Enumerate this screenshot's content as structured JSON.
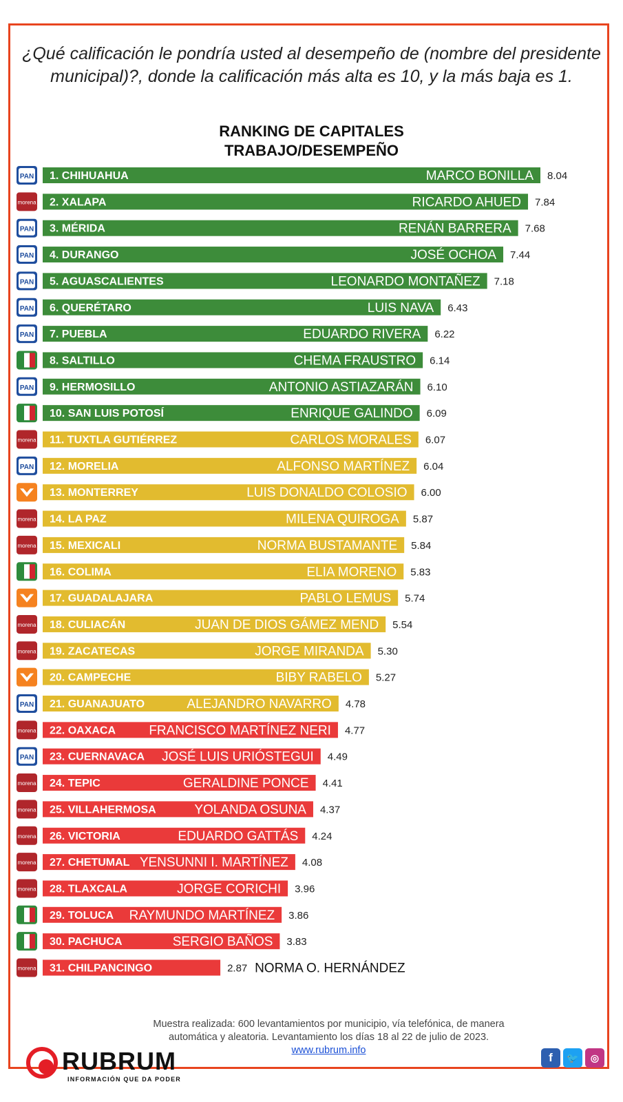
{
  "question": "¿Qué calificación le pondría usted al desempeño de (nombre del presidente municipal)?, donde la calificación más alta es 10, y la más baja es 1.",
  "heading_line1": "RANKING DE CAPITALES",
  "heading_line2": "TRABAJO/DESEMPEÑO",
  "footnote_line1": "Muestra realizada: 600 levantamientos por municipio, vía telefónica, de manera",
  "footnote_line2": "automática y aleatoria. Levantamiento los días 18 al 22 de julio de 2023.",
  "footnote_url": "www.rubrum.info",
  "logo_word": "RUBRUM",
  "logo_tagline": "INFORMACIÓN QUE DA PODER",
  "social_icons": [
    "facebook-icon",
    "twitter-icon",
    "instagram-icon"
  ],
  "party_labels": {
    "PAN": "PAN",
    "morena": "morena",
    "PRI": "PRI",
    "MC": "MC"
  },
  "colors": {
    "green": "#3d8c3a",
    "yellow": "#e2bb2f",
    "red": "#ea3a3a",
    "frame": "#e8441e",
    "PAN": "#1f4e9e",
    "morena": "#b0262b",
    "PRI": "#2e8b3c",
    "MC": "#f58220"
  },
  "chart_data": {
    "type": "bar",
    "orientation": "horizontal",
    "title": "RANKING DE CAPITALES TRABAJO/DESEMPEÑO",
    "xlim": [
      0,
      10
    ],
    "categories": [
      "1. CHIHUAHUA",
      "2. XALAPA",
      "3. MÉRIDA",
      "4. DURANGO",
      "5. AGUASCALIENTES",
      "6. QUERÉTARO",
      "7. PUEBLA",
      "8. SALTILLO",
      "9. HERMOSILLO",
      "10. SAN LUIS POTOSÍ",
      "11. TUXTLA GUTIÉRREZ",
      "12. MORELIA",
      "13. MONTERREY",
      "14. LA PAZ",
      "15. MEXICALI",
      "16. COLIMA",
      "17. GUADALAJARA",
      "18. CULIACÁN",
      "19. ZACATECAS",
      "20. CAMPECHE",
      "21. GUANAJUATO",
      "22. OAXACA",
      "23. CUERNAVACA",
      "24. TEPIC",
      "25. VILLAHERMOSA",
      "26. VICTORIA",
      "27. CHETUMAL",
      "28. TLAXCALA",
      "29. TOLUCA",
      "30. PACHUCA",
      "31. CHILPANCINGO"
    ],
    "names": [
      "MARCO BONILLA",
      "RICARDO AHUED",
      "RENÁN BARRERA",
      "JOSÉ OCHOA",
      "LEONARDO MONTAÑEZ",
      "LUIS NAVA",
      "EDUARDO RIVERA",
      "CHEMA FRAUSTRO",
      "ANTONIO ASTIAZARÁN",
      "ENRIQUE GALINDO",
      "CARLOS MORALES",
      "ALFONSO MARTÍNEZ",
      "LUIS DONALDO COLOSIO",
      "MILENA QUIROGA",
      "NORMA BUSTAMANTE",
      "ELIA MORENO",
      "PABLO LEMUS",
      "JUAN DE DIOS GÁMEZ MEND",
      "JORGE MIRANDA",
      "BIBY RABELO",
      "ALEJANDRO NAVARRO",
      "FRANCISCO MARTÍNEZ NERI",
      "JOSÉ LUIS URIÓSTEGUI",
      "GERALDINE PONCE",
      "YOLANDA OSUNA",
      "EDUARDO GATTÁS",
      "YENSUNNI I. MARTÍNEZ",
      "JORGE CORICHI",
      "RAYMUNDO MARTÍNEZ",
      "SERGIO BAÑOS",
      "NORMA O. HERNÁNDEZ"
    ],
    "values": [
      8.04,
      7.84,
      7.68,
      7.44,
      7.18,
      6.43,
      6.22,
      6.14,
      6.1,
      6.09,
      6.07,
      6.04,
      6.0,
      5.87,
      5.84,
      5.83,
      5.74,
      5.54,
      5.3,
      5.27,
      4.78,
      4.77,
      4.49,
      4.41,
      4.37,
      4.24,
      4.08,
      3.96,
      3.86,
      3.83,
      2.87
    ],
    "value_labels": [
      "8.04",
      "7.84",
      "7.68",
      "7.44",
      "7.18",
      "6.43",
      "6.22",
      "6.14",
      "6.10",
      "6.09",
      "6.07",
      "6.04",
      "6.00",
      "5.87",
      "5.84",
      "5.83",
      "5.74",
      "5.54",
      "5.30",
      "5.27",
      "4.78",
      "4.77",
      "4.49",
      "4.41",
      "4.37",
      "4.24",
      "4.08",
      "3.96",
      "3.86",
      "3.83",
      "2.87"
    ],
    "parties": [
      "PAN",
      "morena",
      "PAN",
      "PAN",
      "PAN",
      "PAN",
      "PAN",
      "PRI",
      "PAN",
      "PRI",
      "morena",
      "PAN",
      "MC",
      "morena",
      "morena",
      "PRI",
      "MC",
      "morena",
      "morena",
      "MC",
      "PAN",
      "morena",
      "PAN",
      "morena",
      "morena",
      "morena",
      "morena",
      "morena",
      "PRI",
      "PRI",
      "morena"
    ],
    "groups": [
      "green",
      "green",
      "green",
      "green",
      "green",
      "green",
      "green",
      "green",
      "green",
      "green",
      "yellow",
      "yellow",
      "yellow",
      "yellow",
      "yellow",
      "yellow",
      "yellow",
      "yellow",
      "yellow",
      "yellow",
      "yellow",
      "red",
      "red",
      "red",
      "red",
      "red",
      "red",
      "red",
      "red",
      "red",
      "red"
    ]
  }
}
